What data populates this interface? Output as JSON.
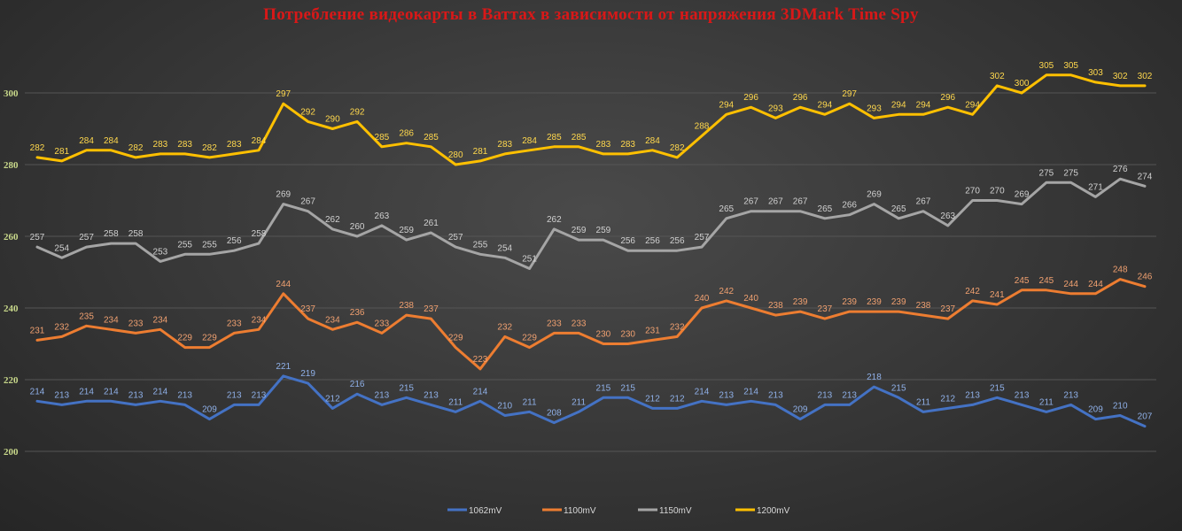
{
  "chart_data": {
    "type": "line",
    "title": "Потребление видеокарты в Ваттах в зависимости от напряжения 3DMark Time Spy",
    "xlabel": "",
    "ylabel": "",
    "ylim": [
      200,
      310
    ],
    "yticks": [
      200,
      220,
      240,
      260,
      280,
      300
    ],
    "grid": true,
    "legend_position": "bottom",
    "series": [
      {
        "name": "1062mV",
        "color": "#4472c4",
        "label_color": "#8fb0e8",
        "values": [
          214,
          213,
          214,
          214,
          213,
          214,
          213,
          209,
          213,
          213,
          221,
          219,
          212,
          216,
          213,
          215,
          213,
          211,
          214,
          210,
          211,
          208,
          211,
          215,
          215,
          212,
          212,
          214,
          213,
          214,
          213,
          209,
          213,
          213,
          218,
          215,
          211,
          212,
          213,
          215,
          213,
          211,
          213,
          209,
          210,
          207
        ]
      },
      {
        "name": "1100mV",
        "color": "#ed7d31",
        "label_color": "#f0a070",
        "values": [
          231,
          232,
          235,
          234,
          233,
          234,
          229,
          229,
          233,
          234,
          244,
          237,
          234,
          236,
          233,
          238,
          237,
          229,
          223,
          232,
          229,
          233,
          233,
          230,
          230,
          231,
          232,
          240,
          242,
          240,
          238,
          239,
          237,
          239,
          239,
          239,
          238,
          237,
          242,
          241,
          245,
          245,
          244,
          244,
          248,
          246
        ]
      },
      {
        "name": "1150mV",
        "color": "#a5a5a5",
        "label_color": "#d0d0d0",
        "values": [
          257,
          254,
          257,
          258,
          258,
          253,
          255,
          255,
          256,
          258,
          269,
          267,
          262,
          260,
          263,
          259,
          261,
          257,
          255,
          254,
          251,
          262,
          259,
          259,
          256,
          256,
          256,
          257,
          265,
          267,
          267,
          267,
          265,
          266,
          269,
          265,
          267,
          263,
          270,
          270,
          269,
          275,
          275,
          271,
          276,
          274
        ]
      },
      {
        "name": "1200mV",
        "color": "#ffc000",
        "label_color": "#ffd84d",
        "values": [
          282,
          281,
          284,
          284,
          282,
          283,
          283,
          282,
          283,
          284,
          297,
          292,
          290,
          292,
          285,
          286,
          285,
          280,
          281,
          283,
          284,
          285,
          285,
          283,
          283,
          284,
          282,
          288,
          294,
          296,
          293,
          296,
          294,
          297,
          293,
          294,
          294,
          296,
          294,
          302,
          300,
          305,
          305,
          303,
          302,
          302
        ]
      }
    ]
  }
}
